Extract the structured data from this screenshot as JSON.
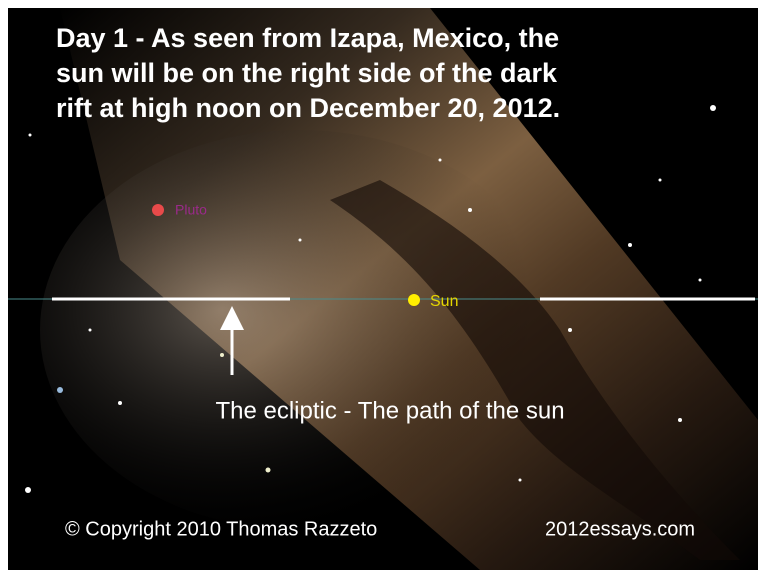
{
  "header": {
    "title_lines": [
      "Day 1 - As seen from Izapa, Mexico, the",
      "sun will be on the right side of the dark",
      "rift at high noon on December 20, 2012."
    ]
  },
  "labels": {
    "pluto": "Pluto",
    "sun": "Sun",
    "ecliptic": "The ecliptic - The path of the sun"
  },
  "footer": {
    "copyright": "© Copyright 2010 Thomas Razzeto",
    "site": "2012essays.com"
  }
}
